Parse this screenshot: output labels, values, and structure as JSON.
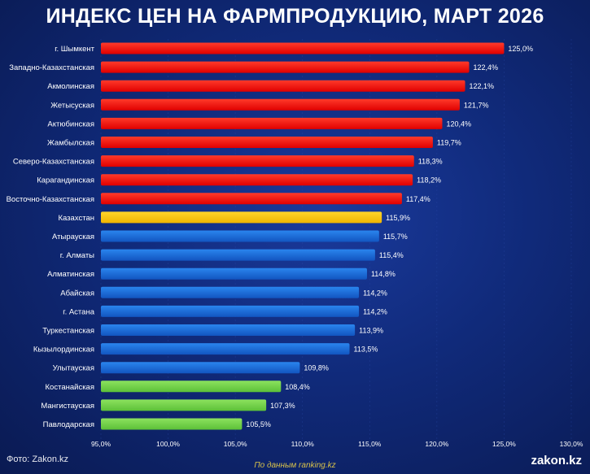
{
  "chart_data": {
    "type": "bar",
    "orientation": "horizontal",
    "title": "ИНДЕКС ЦЕН НА ФАРМПРОДУКЦИЮ, МАРТ 2026",
    "categories": [
      "г. Шымкент",
      "Западно-Казахстанская",
      "Акмолинская",
      "Жетысуская",
      "Актюбинская",
      "Жамбылская",
      "Северо-Казахстанская",
      "Карагандинская",
      "Восточно-Казахстанская",
      "Казахстан",
      "Атырауская",
      "г. Алматы",
      "Алматинская",
      "Абайская",
      "г. Астана",
      "Туркестанская",
      "Кызылординская",
      "Улытауская",
      "Костанайская",
      "Мангистауская",
      "Павлодарская"
    ],
    "values": [
      125.0,
      122.4,
      122.1,
      121.7,
      120.4,
      119.7,
      118.3,
      118.2,
      117.4,
      115.9,
      115.7,
      115.4,
      114.8,
      114.2,
      114.2,
      113.9,
      113.5,
      109.8,
      108.4,
      107.3,
      105.5
    ],
    "value_labels": [
      "125,0%",
      "122,4%",
      "122,1%",
      "121,7%",
      "120,4%",
      "119,7%",
      "118,3%",
      "118,2%",
      "117,4%",
      "115,9%",
      "115,7%",
      "115,4%",
      "114,8%",
      "114,2%",
      "114,2%",
      "113,9%",
      "113,5%",
      "109,8%",
      "108,4%",
      "107,3%",
      "105,5%"
    ],
    "bar_groups": [
      "red",
      "red",
      "red",
      "red",
      "red",
      "red",
      "red",
      "red",
      "red",
      "yellow",
      "blue",
      "blue",
      "blue",
      "blue",
      "blue",
      "blue",
      "blue",
      "blue",
      "green",
      "green",
      "green"
    ],
    "xlim": [
      95.0,
      130.0
    ],
    "xticks": [
      95,
      100,
      105,
      110,
      115,
      120,
      125,
      130
    ],
    "xtick_labels": [
      "95,0%",
      "100,0%",
      "105,0%",
      "110,0%",
      "115,0%",
      "120,0%",
      "125,0%",
      "130,0%"
    ],
    "colors": {
      "red": "#f20d0d",
      "yellow": "#f5c400",
      "blue": "#1769d6",
      "green": "#6fd14a",
      "label": "#ffffff",
      "grid": "#2a4aa8"
    }
  },
  "footer": {
    "photo_credit": "Фото: Zakon.kz",
    "source": "По данным ranking.kz",
    "brand": "zakon.kz"
  }
}
